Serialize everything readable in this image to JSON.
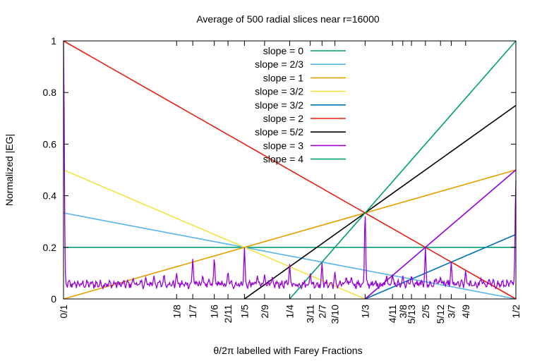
{
  "chart_data": {
    "type": "line",
    "title": "Average of 500 radial slices near r=16000",
    "xlabel": "θ/2π labelled with Farey Fractions",
    "ylabel": "Normalized |EG|",
    "xlim": [
      0,
      0.5
    ],
    "ylim": [
      0,
      1
    ],
    "grid": false,
    "legend_position": "top-center",
    "yticks": [
      {
        "value": 0,
        "label": "0"
      },
      {
        "value": 0.2,
        "label": "0.2"
      },
      {
        "value": 0.4,
        "label": "0.4"
      },
      {
        "value": 0.6,
        "label": "0.6"
      },
      {
        "value": 0.8,
        "label": "0.8"
      },
      {
        "value": 1,
        "label": "1"
      }
    ],
    "xticks": [
      {
        "value": 0,
        "label": "0/1"
      },
      {
        "value": 0.125,
        "label": "1/8"
      },
      {
        "value": 0.142857,
        "label": "1/7"
      },
      {
        "value": 0.166667,
        "label": "1/6"
      },
      {
        "value": 0.181818,
        "label": "2/11"
      },
      {
        "value": 0.2,
        "label": "1/5"
      },
      {
        "value": 0.222222,
        "label": "2/9"
      },
      {
        "value": 0.25,
        "label": "1/4"
      },
      {
        "value": 0.272727,
        "label": "3/11"
      },
      {
        "value": 0.285714,
        "label": "2/7"
      },
      {
        "value": 0.3,
        "label": "3/10"
      },
      {
        "value": 0.333333,
        "label": "1/3"
      },
      {
        "value": 0.363636,
        "label": "4/11"
      },
      {
        "value": 0.375,
        "label": "3/8"
      },
      {
        "value": 0.384615,
        "label": "5/13"
      },
      {
        "value": 0.4,
        "label": "2/5"
      },
      {
        "value": 0.416667,
        "label": "5/12"
      },
      {
        "value": 0.428571,
        "label": "3/7"
      },
      {
        "value": 0.444444,
        "label": "4/9"
      },
      {
        "value": 0.5,
        "label": "1/2"
      }
    ],
    "series": [
      {
        "name": "slope = 0",
        "color": "#009e73",
        "x": [
          0,
          0.5
        ],
        "y": [
          0.2,
          0.2
        ]
      },
      {
        "name": "slope = 2/3",
        "color": "#56b4e9",
        "x": [
          0,
          0.5
        ],
        "y": [
          0.3333,
          0
        ]
      },
      {
        "name": "slope = 1",
        "color": "#e69f00",
        "x": [
          0,
          0.5
        ],
        "y": [
          0,
          0.5
        ]
      },
      {
        "name": "slope = 3/2",
        "color": "#f0e442",
        "x": [
          0,
          0.3333
        ],
        "y": [
          0.5,
          0
        ]
      },
      {
        "name": "slope = 3/2",
        "color": "#0072b2",
        "x": [
          0.3333,
          0.5
        ],
        "y": [
          0,
          0.25
        ]
      },
      {
        "name": "slope = 2",
        "color": "#e51e10",
        "x": [
          0,
          0.5
        ],
        "y": [
          1,
          0
        ]
      },
      {
        "name": "slope = 5/2",
        "color": "#000000",
        "x": [
          0.2,
          0.5
        ],
        "y": [
          0,
          0.75
        ]
      },
      {
        "name": "slope = 3",
        "color": "#9400d3",
        "x": [
          0.3333,
          0.5
        ],
        "y": [
          0,
          0.5
        ]
      },
      {
        "name": "slope = 4",
        "color": "#009e73",
        "x": [
          0.25,
          0.5
        ],
        "y": [
          0,
          1
        ]
      }
    ],
    "data_curve": {
      "color": "#9400d3",
      "baseline": 0.057,
      "peaks": [
        {
          "x": 0,
          "y": 1.0
        },
        {
          "x": 0.5,
          "y": 0.46
        },
        {
          "x": 0.333333,
          "y": 0.34
        },
        {
          "x": 0.2,
          "y": 0.2
        },
        {
          "x": 0.4,
          "y": 0.2
        },
        {
          "x": 0.25,
          "y": 0.135
        },
        {
          "x": 0.142857,
          "y": 0.155
        },
        {
          "x": 0.166667,
          "y": 0.16
        },
        {
          "x": 0.285714,
          "y": 0.14
        },
        {
          "x": 0.428571,
          "y": 0.145
        },
        {
          "x": 0.181818,
          "y": 0.105
        },
        {
          "x": 0.3,
          "y": 0.105
        },
        {
          "x": 0.272727,
          "y": 0.1
        },
        {
          "x": 0.363636,
          "y": 0.095
        },
        {
          "x": 0.125,
          "y": 0.1
        },
        {
          "x": 0.444444,
          "y": 0.11
        },
        {
          "x": 0.222222,
          "y": 0.095
        },
        {
          "x": 0.375,
          "y": 0.09
        },
        {
          "x": 0.384615,
          "y": 0.09
        },
        {
          "x": 0.416667,
          "y": 0.085
        },
        {
          "x": 0.111111,
          "y": 0.095
        },
        {
          "x": 0.1,
          "y": 0.09
        },
        {
          "x": 0.076923,
          "y": 0.08
        },
        {
          "x": 0.090909,
          "y": 0.085
        },
        {
          "x": 0.153846,
          "y": 0.09
        },
        {
          "x": 0.214286,
          "y": 0.09
        },
        {
          "x": 0.230769,
          "y": 0.085
        },
        {
          "x": 0.3125,
          "y": 0.085
        },
        {
          "x": 0.318182,
          "y": 0.085
        },
        {
          "x": 0.357143,
          "y": 0.09
        },
        {
          "x": 0.411765,
          "y": 0.08
        },
        {
          "x": 0.461538,
          "y": 0.08
        },
        {
          "x": 0.470588,
          "y": 0.075
        }
      ]
    }
  }
}
